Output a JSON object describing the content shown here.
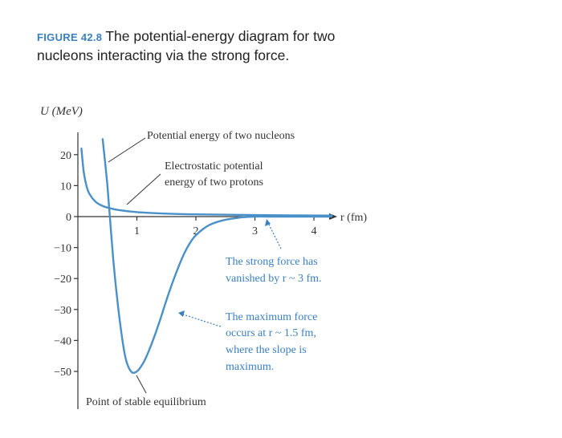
{
  "figure": {
    "number": "FIGURE 42.8",
    "caption": "The potential-energy diagram for two nucleons interacting via the strong force."
  },
  "chart_data": {
    "type": "line",
    "title": "",
    "ylabel": "U (MeV)",
    "xlabel": "r (fm)",
    "xlim": [
      0,
      4.3
    ],
    "ylim": [
      -55,
      25
    ],
    "xticks": [
      1,
      2,
      3,
      4
    ],
    "yticks": [
      20,
      10,
      0,
      -10,
      -20,
      -30,
      -40,
      -50
    ],
    "ytick_labels": [
      "20",
      "10",
      "0",
      "−10",
      "−20",
      "−30",
      "−40",
      "−50"
    ],
    "grid": false,
    "series": [
      {
        "name": "Potential energy of two nucleons",
        "color": "#4a90c8",
        "x": [
          0.42,
          0.5,
          0.6,
          0.7,
          0.8,
          0.9,
          1.0,
          1.1,
          1.2,
          1.3,
          1.4,
          1.5,
          1.6,
          1.7,
          1.8,
          1.9,
          2.0,
          2.2,
          2.4,
          2.6,
          2.8,
          3.0,
          3.2,
          3.6,
          4.3
        ],
        "y": [
          25,
          10,
          -14,
          -32,
          -45,
          -50,
          -50,
          -47.5,
          -43.5,
          -38.5,
          -33,
          -27,
          -21.5,
          -16.5,
          -12,
          -8.5,
          -6,
          -3,
          -1.5,
          -0.7,
          -0.2,
          0,
          0,
          0,
          0
        ]
      },
      {
        "name": "Electrostatic potential energy of two protons",
        "color": "#4a90c8",
        "x": [
          0.06,
          0.1,
          0.15,
          0.2,
          0.3,
          0.4,
          0.5,
          0.7,
          1.0,
          1.5,
          2.0,
          3.0,
          4.3
        ],
        "y": [
          22,
          14.4,
          9.6,
          7.2,
          4.8,
          3.6,
          2.9,
          2.1,
          1.44,
          0.96,
          0.72,
          0.48,
          0.33
        ]
      }
    ],
    "annotations": [
      {
        "text": "Potential energy of two nucleons"
      },
      {
        "text_lines": [
          "Electrostatic potential",
          "energy of two protons"
        ]
      },
      {
        "text_lines": [
          "The strong force has",
          "vanished by r ~ 3 fm."
        ]
      },
      {
        "text_lines": [
          "The maximum force",
          "occurs at r ~ 1.5 fm,",
          "where the slope is",
          "maximum."
        ]
      },
      {
        "text": "Point of stable equilibrium"
      }
    ]
  }
}
